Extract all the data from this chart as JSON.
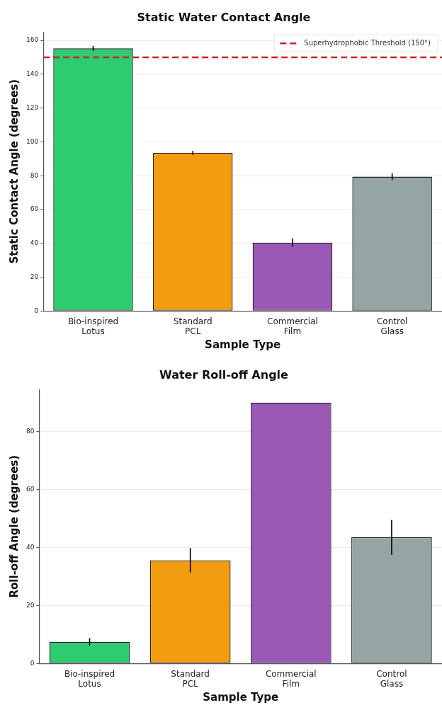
{
  "chart_data": [
    {
      "type": "bar",
      "title": "Static Water Contact Angle",
      "xlabel": "Sample Type",
      "ylabel": "Static Contact Angle (degrees)",
      "categories": [
        "Bio-inspired Lotus",
        "Standard PCL",
        "Commercial Film",
        "Control Glass"
      ],
      "values": [
        155.3,
        93.5,
        40.4,
        79.4
      ],
      "errors": [
        1.5,
        1.2,
        2.5,
        2
      ],
      "colors": [
        "#2ecc71",
        "#f39c12",
        "#9b59b6",
        "#95a5a6"
      ],
      "ylim": [
        0,
        165
      ],
      "yticks": [
        0,
        20,
        40,
        60,
        80,
        100,
        120,
        140,
        160
      ],
      "grid": "y",
      "legend": "top right",
      "ref_lines": [
        {
          "axis": "y",
          "value": 150,
          "label": "Superhydrophobic Threshold (150°)",
          "color": "#cc2222",
          "line_style": "dashed"
        }
      ]
    },
    {
      "type": "bar",
      "title": "Water Roll-off Angle",
      "xlabel": "Sample Type",
      "ylabel": "Roll-off Angle (degrees)",
      "categories": [
        "Bio-inspired Lotus",
        "Standard PCL",
        "Commercial Film",
        "Control Glass"
      ],
      "values": [
        7.4,
        35.6,
        90,
        43.5
      ],
      "errors": [
        1.3,
        4.2,
        null,
        6
      ],
      "colors": [
        "#2ecc71",
        "#f39c12",
        "#9b59b6",
        "#95a5a6"
      ],
      "ylim": [
        0,
        94.5
      ],
      "yticks": [
        0,
        20,
        40,
        60,
        80
      ],
      "grid": "y"
    }
  ]
}
